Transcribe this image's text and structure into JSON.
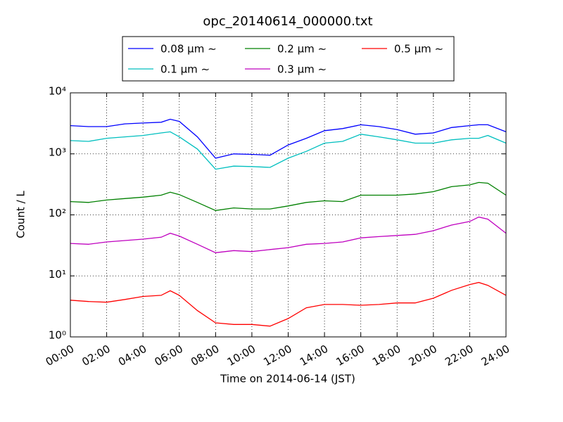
{
  "chart_data": {
    "type": "line",
    "title": "opc_20140614_000000.txt",
    "x_label": "Time on 2014-06-14 (JST)",
    "y_label": "Count / L",
    "log_y": true,
    "grid": true,
    "legend": "upper center",
    "x": [
      0,
      1,
      2,
      3,
      4,
      5,
      5.5,
      6,
      7,
      8,
      9,
      10,
      11,
      12,
      13,
      14,
      15,
      16,
      17,
      18,
      19,
      20,
      21,
      22,
      22.5,
      23,
      24
    ],
    "xlim": [
      0,
      24
    ],
    "xticks": [
      {
        "value": 0,
        "label": "00:00"
      },
      {
        "value": 2,
        "label": "02:00"
      },
      {
        "value": 4,
        "label": "04:00"
      },
      {
        "value": 6,
        "label": "06:00"
      },
      {
        "value": 8,
        "label": "08:00"
      },
      {
        "value": 10,
        "label": "10:00"
      },
      {
        "value": 12,
        "label": "12:00"
      },
      {
        "value": 14,
        "label": "14:00"
      },
      {
        "value": 16,
        "label": "16:00"
      },
      {
        "value": 18,
        "label": "18:00"
      },
      {
        "value": 20,
        "label": "20:00"
      },
      {
        "value": 22,
        "label": "22:00"
      },
      {
        "value": 24,
        "label": "24:00"
      }
    ],
    "ylim": [
      1,
      10000
    ],
    "yticks": [
      {
        "value": 1,
        "label": "10⁰"
      },
      {
        "value": 10,
        "label": "10¹"
      },
      {
        "value": 100,
        "label": "10²"
      },
      {
        "value": 1000,
        "label": "10³"
      },
      {
        "value": 10000,
        "label": "10⁴"
      }
    ],
    "series": [
      {
        "name": "0.08 μm ∼",
        "color": "#0000ff",
        "values": [
          2900,
          2800,
          2800,
          3100,
          3200,
          3300,
          3700,
          3400,
          1900,
          850,
          1000,
          980,
          950,
          1400,
          1800,
          2400,
          2600,
          3000,
          2800,
          2500,
          2100,
          2200,
          2700,
          2900,
          3000,
          3000,
          2300
        ]
      },
      {
        "name": "0.1 μm ∼",
        "color": "#00bfbf",
        "values": [
          1650,
          1600,
          1800,
          1900,
          2000,
          2200,
          2300,
          1900,
          1200,
          560,
          630,
          620,
          600,
          850,
          1100,
          1500,
          1600,
          2100,
          1900,
          1700,
          1500,
          1500,
          1700,
          1800,
          1800,
          2000,
          1500
        ]
      },
      {
        "name": "0.2 μm ∼",
        "color": "#008000",
        "values": [
          165,
          160,
          175,
          185,
          195,
          210,
          235,
          215,
          160,
          118,
          130,
          125,
          125,
          140,
          160,
          170,
          165,
          210,
          210,
          210,
          220,
          240,
          290,
          310,
          340,
          330,
          210
        ]
      },
      {
        "name": "0.3 μm ∼",
        "color": "#bf00bf",
        "values": [
          34,
          33,
          36,
          38,
          40,
          43,
          50,
          45,
          33,
          24,
          26,
          25,
          27,
          29,
          33,
          34,
          36,
          42,
          44,
          46,
          48,
          55,
          68,
          78,
          92,
          85,
          50
        ]
      },
      {
        "name": "0.5 μm ∼",
        "color": "#ff0000",
        "values": [
          4.0,
          3.8,
          3.7,
          4.1,
          4.6,
          4.8,
          5.7,
          4.8,
          2.7,
          1.7,
          1.6,
          1.6,
          1.5,
          2.0,
          3.0,
          3.4,
          3.4,
          3.3,
          3.4,
          3.6,
          3.6,
          4.3,
          5.8,
          7.2,
          7.8,
          7.0,
          4.8
        ]
      }
    ]
  }
}
